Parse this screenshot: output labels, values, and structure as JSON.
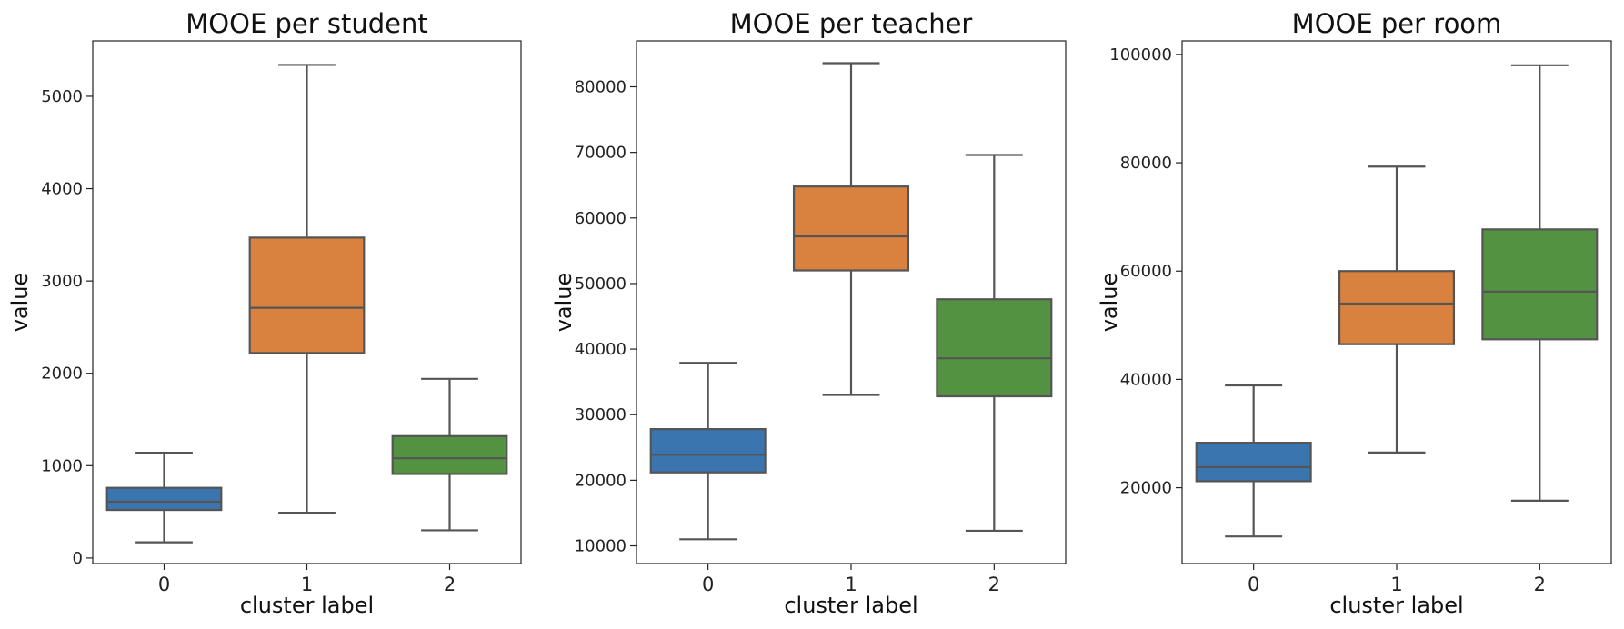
{
  "chart_data": [
    {
      "type": "box",
      "title": "MOOE per student",
      "xlabel": "cluster label",
      "ylabel": "value",
      "categories": [
        "0",
        "1",
        "2"
      ],
      "ylim": [
        -60,
        5600
      ],
      "yticks": [
        0,
        1000,
        2000,
        3000,
        4000,
        5000
      ],
      "colors": [
        "#3b75af",
        "#d98240",
        "#529241"
      ],
      "boxes": [
        {
          "min": 170,
          "q1": 520,
          "median": 610,
          "q3": 760,
          "max": 1140
        },
        {
          "min": 490,
          "q1": 2220,
          "median": 2710,
          "q3": 3470,
          "max": 5340
        },
        {
          "min": 300,
          "q1": 910,
          "median": 1080,
          "q3": 1320,
          "max": 1940
        }
      ]
    },
    {
      "type": "box",
      "title": "MOOE per teacher",
      "xlabel": "cluster label",
      "ylabel": "value",
      "categories": [
        "0",
        "1",
        "2"
      ],
      "ylim": [
        7300,
        87000
      ],
      "yticks": [
        10000,
        20000,
        30000,
        40000,
        50000,
        60000,
        70000,
        80000
      ],
      "colors": [
        "#3b75af",
        "#d98240",
        "#529241"
      ],
      "boxes": [
        {
          "min": 11000,
          "q1": 21200,
          "median": 23900,
          "q3": 27800,
          "max": 37900
        },
        {
          "min": 33000,
          "q1": 52000,
          "median": 57200,
          "q3": 64800,
          "max": 83600
        },
        {
          "min": 12300,
          "q1": 32800,
          "median": 38600,
          "q3": 47600,
          "max": 69600
        }
      ]
    },
    {
      "type": "box",
      "title": "MOOE per room",
      "xlabel": "cluster label",
      "ylabel": "value",
      "categories": [
        "0",
        "1",
        "2"
      ],
      "ylim": [
        6000,
        102500
      ],
      "yticks": [
        20000,
        40000,
        60000,
        80000,
        100000
      ],
      "colors": [
        "#3b75af",
        "#d98240",
        "#529241"
      ],
      "boxes": [
        {
          "min": 11000,
          "q1": 21200,
          "median": 23800,
          "q3": 28300,
          "max": 38900
        },
        {
          "min": 26500,
          "q1": 46500,
          "median": 54000,
          "q3": 60000,
          "max": 79300
        },
        {
          "min": 17600,
          "q1": 47400,
          "median": 56200,
          "q3": 67700,
          "max": 98000
        }
      ]
    }
  ]
}
